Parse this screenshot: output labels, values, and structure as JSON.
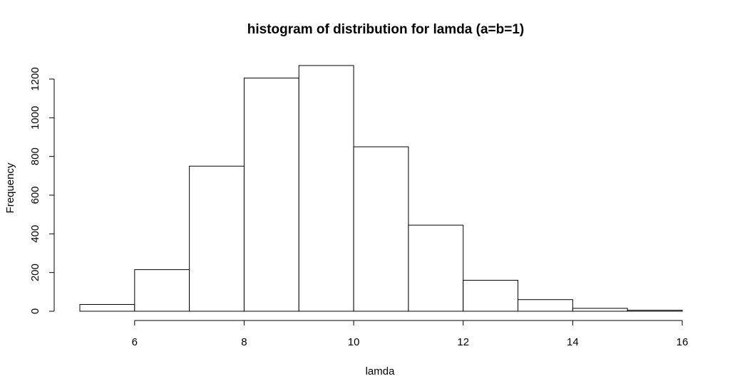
{
  "chart_data": {
    "type": "bar",
    "title": "histogram of distribution for lamda (a=b=1)",
    "xlabel": "lamda",
    "ylabel": "Frequency",
    "bins": [
      {
        "from": 5,
        "to": 6,
        "count": 35
      },
      {
        "from": 6,
        "to": 7,
        "count": 215
      },
      {
        "from": 7,
        "to": 8,
        "count": 750
      },
      {
        "from": 8,
        "to": 9,
        "count": 1205
      },
      {
        "from": 9,
        "to": 10,
        "count": 1270
      },
      {
        "from": 10,
        "to": 11,
        "count": 850
      },
      {
        "from": 11,
        "to": 12,
        "count": 445
      },
      {
        "from": 12,
        "to": 13,
        "count": 160
      },
      {
        "from": 13,
        "to": 14,
        "count": 60
      },
      {
        "from": 14,
        "to": 15,
        "count": 15
      },
      {
        "from": 15,
        "to": 16,
        "count": 5
      }
    ],
    "x_ticks": [
      6,
      8,
      10,
      12,
      14,
      16
    ],
    "y_ticks": [
      0,
      200,
      400,
      600,
      800,
      1000,
      1200
    ],
    "xlim": [
      5,
      16
    ],
    "ylim": [
      0,
      1270
    ],
    "grid": false,
    "legend": "none",
    "bar_color": "#ffffff",
    "line_color": "#000000"
  }
}
